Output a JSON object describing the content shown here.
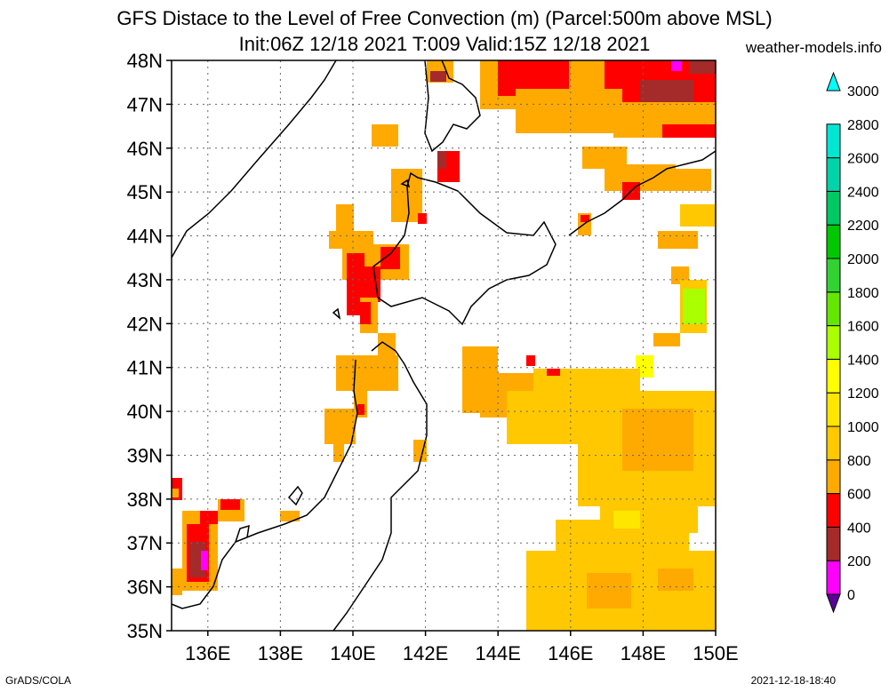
{
  "header": {
    "title_line1": "GFS Distace to the Level of Free Convection (m) (Parcel:500m above MSL)",
    "title_line2": "Init:06Z 12/18 2021 T:009 Valid:15Z 12/18 2021",
    "site": "weather-models.info"
  },
  "footer": {
    "left": "GrADS/COLA",
    "right": "2021-12-18-18:40"
  },
  "map": {
    "lon_labels": [
      "136E",
      "138E",
      "140E",
      "142E",
      "144E",
      "146E",
      "148E",
      "150E"
    ],
    "lat_labels": [
      "35N",
      "36N",
      "37N",
      "38N",
      "39N",
      "40N",
      "41N",
      "42N",
      "43N",
      "44N",
      "45N",
      "46N",
      "47N",
      "48N"
    ],
    "lon_range": [
      135,
      150
    ],
    "lat_range": [
      35,
      48
    ],
    "grid": "dotted"
  },
  "colorbar": {
    "levels": [
      "0",
      "200",
      "400",
      "600",
      "800",
      "1000",
      "1200",
      "1400",
      "1600",
      "1800",
      "2000",
      "2200",
      "2400",
      "2600",
      "2800",
      "3000"
    ],
    "colors": [
      "#5a0096",
      "#ff00ff",
      "#a52a2a",
      "#ff0000",
      "#ffaa00",
      "#ffc800",
      "#ffe600",
      "#ffff00",
      "#aaff00",
      "#64e600",
      "#32d232",
      "#00c800",
      "#00c864",
      "#00d2aa",
      "#00e6d2",
      "#00ffff"
    ]
  }
}
